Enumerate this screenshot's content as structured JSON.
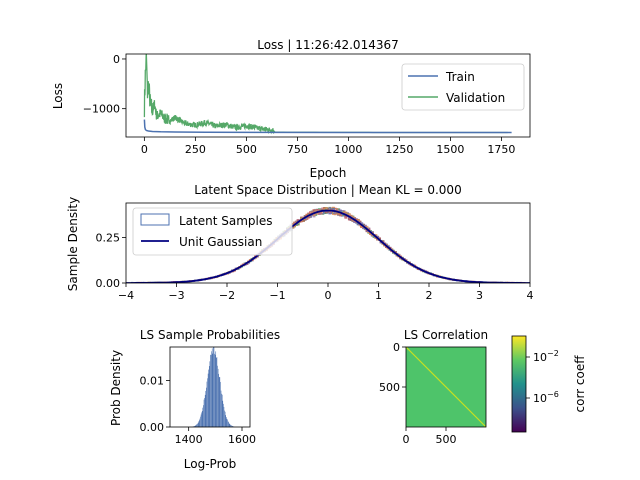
{
  "chart_data": [
    {
      "type": "line",
      "title": "Loss | 11:26:42.014367",
      "xlabel": "Epoch",
      "ylabel": "Loss",
      "xlim": [
        -90,
        1890
      ],
      "ylim": [
        -1570,
        100
      ],
      "xticks": [
        0,
        250,
        500,
        750,
        1000,
        1250,
        1500,
        1750
      ],
      "xtick_labels": [
        "0",
        "250",
        "500",
        "750",
        "1000",
        "1250",
        "1500",
        "1750"
      ],
      "yticks": [
        0,
        -1000
      ],
      "ytick_labels": [
        "0",
        "−1000"
      ],
      "legend": {
        "position": "upper-right",
        "entries": [
          {
            "label": "Train",
            "color": "#4c72b0"
          },
          {
            "label": "Validation",
            "color": "#55a868"
          }
        ]
      },
      "series": [
        {
          "name": "Train",
          "color": "#4c72b0",
          "x": [
            0,
            2,
            5,
            10,
            20,
            40,
            80,
            150,
            300,
            600,
            1000,
            1800
          ],
          "y": [
            -1220,
            -1370,
            -1420,
            -1440,
            -1450,
            -1460,
            -1465,
            -1470,
            -1475,
            -1478,
            -1480,
            -1480
          ]
        },
        {
          "name": "Validation",
          "color": "#55a868",
          "x": [
            0,
            5,
            10,
            15,
            20,
            30,
            40,
            50,
            60,
            80,
            100,
            125,
            150,
            200,
            250,
            300,
            350,
            400,
            450,
            500,
            550,
            600,
            630,
            640,
            700,
            1000,
            1500,
            1800
          ],
          "y": [
            -950,
            -300,
            40,
            -700,
            -500,
            -950,
            -1050,
            -900,
            -1150,
            -1100,
            -1200,
            -1250,
            -1180,
            -1300,
            -1330,
            -1280,
            -1350,
            -1320,
            -1380,
            -1340,
            -1390,
            -1420,
            -1430,
            -1470,
            -1475,
            -1478,
            -1480,
            -1480
          ]
        }
      ]
    },
    {
      "type": "histogram",
      "title": "Latent Space Distribution | Mean KL = 0.000",
      "xlabel": "",
      "ylabel": "Sample Density",
      "xlim": [
        -4,
        4
      ],
      "ylim": [
        0,
        0.44
      ],
      "xticks": [
        -4,
        -3,
        -2,
        -1,
        0,
        1,
        2,
        3,
        4
      ],
      "xtick_labels": [
        "−4",
        "−3",
        "−2",
        "−1",
        "0",
        "1",
        "2",
        "3",
        "4"
      ],
      "yticks": [
        0,
        0.25
      ],
      "ytick_labels": [
        "0.00",
        "0.25"
      ],
      "legend": {
        "position": "upper-left",
        "entries": [
          {
            "label": "Latent Samples",
            "color": "#4c72b0",
            "kind": "patch"
          },
          {
            "label": "Unit Gaussian",
            "color": "#000080",
            "kind": "line"
          }
        ]
      },
      "series": [
        {
          "name": "Unit Gaussian",
          "distribution": "normal",
          "mean": 0,
          "std": 1,
          "color": "#000080"
        }
      ],
      "latent_samples": {
        "distribution": "approximately standard normal, many overlapping dimensions",
        "colors": [
          "#55a868",
          "#c44e52",
          "#8172b2",
          "#dd8452",
          "#4c72b0"
        ]
      }
    },
    {
      "type": "histogram",
      "title": "LS Sample Probabilities",
      "xlabel": "Log-Prob",
      "ylabel": "Prob Density",
      "xlim": [
        1330,
        1630
      ],
      "ylim": [
        0,
        0.0172
      ],
      "xticks": [
        1400,
        1600
      ],
      "xtick_labels": [
        "1400",
        "1600"
      ],
      "yticks": [
        0,
        0.01
      ],
      "ytick_labels": [
        "0.00",
        "0.01"
      ],
      "color": "#4c72b0",
      "distribution": {
        "mean": 1493,
        "std": 24,
        "peak_density": 0.0166
      }
    },
    {
      "type": "heatmap",
      "title": "LS Correlation",
      "xlim": [
        0,
        1000
      ],
      "ylim": [
        1000,
        0
      ],
      "xticks": [
        0,
        500
      ],
      "xtick_labels": [
        "0",
        "500"
      ],
      "yticks": [
        0,
        500
      ],
      "ytick_labels": [
        "0",
        "500"
      ],
      "size": 1000,
      "background_color": "#4ec46a",
      "diagonal_color": "#c8e020",
      "colorbar": {
        "label": "corr coeff",
        "scale": "log",
        "tick_labels": [
          "10−2",
          "10−6"
        ],
        "ticks": [
          0.01,
          1e-06
        ],
        "colors": [
          "#440154",
          "#3b528b",
          "#21918c",
          "#5ec962",
          "#fde725"
        ]
      }
    }
  ]
}
